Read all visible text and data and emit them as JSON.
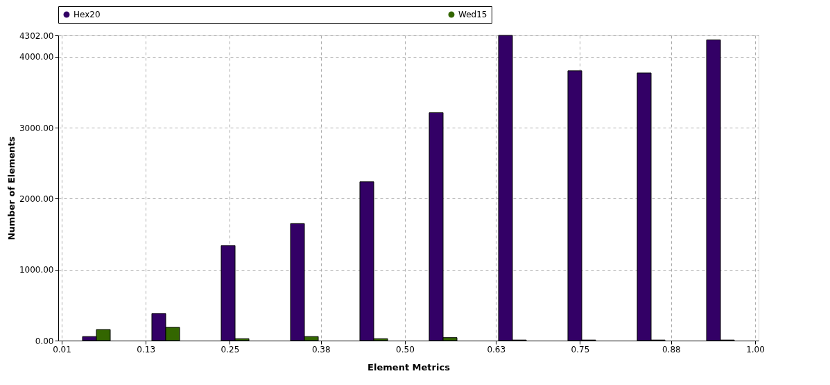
{
  "chart_data": {
    "type": "bar",
    "xlabel": "Element Metrics",
    "ylabel": "Number of Elements",
    "x": [
      0.0595,
      0.1585,
      0.2575,
      0.3565,
      0.4555,
      0.5545,
      0.6535,
      0.7525,
      0.8515,
      0.9505
    ],
    "series": [
      {
        "name": "Hex20",
        "color": "#330066",
        "values": [
          57,
          382,
          1340,
          1649,
          2240,
          3212,
          4302,
          3804,
          3773,
          4238
        ]
      },
      {
        "name": "Wed15",
        "color": "#336600",
        "values": [
          156,
          187,
          27,
          57,
          27,
          42,
          8,
          8,
          8,
          8
        ]
      }
    ],
    "xlim": [
      0.01,
      1.0
    ],
    "xticks": [
      0.01,
      0.13,
      0.25,
      0.38,
      {
        "value": 0.5,
        "label": "0.50"
      },
      0.63,
      0.75,
      0.88,
      {
        "value": 1.0,
        "label": "1.00"
      }
    ],
    "ylim": [
      0,
      4302
    ],
    "yticks": [
      {
        "value": 0,
        "label": "0.00"
      },
      {
        "value": 1000,
        "label": "1000.00"
      },
      {
        "value": 2000,
        "label": "2000.00"
      },
      {
        "value": 3000,
        "label": "3000.00"
      },
      {
        "value": 4000,
        "label": "4000.00"
      },
      {
        "value": 4302,
        "label": "4302.00"
      }
    ],
    "grid": true,
    "legend": "top",
    "marker": "circle"
  }
}
